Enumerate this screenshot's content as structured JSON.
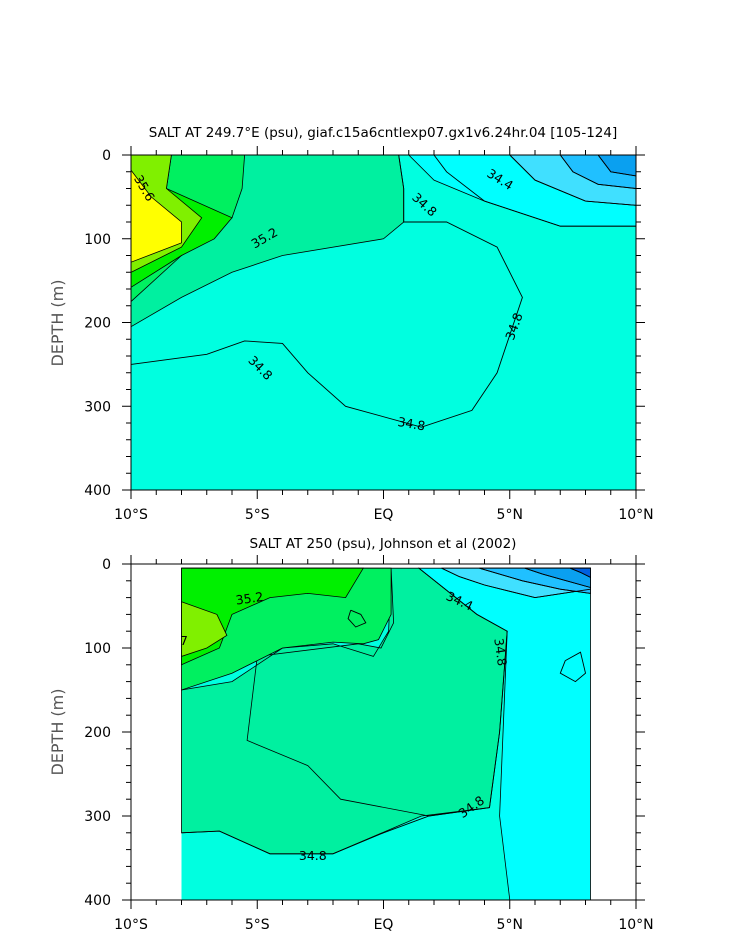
{
  "chart_data": [
    {
      "type": "heatmap",
      "title": "SALT AT 249.7°E (psu), giaf.c15a6cntlexp07.gx1v6.24hr.04 [105-124]",
      "ylabel": "DEPTH (m)",
      "xlabel": "",
      "xlim": [
        -10,
        10
      ],
      "ylim": [
        400,
        0
      ],
      "x_ticks": [
        -10,
        -5,
        0,
        5,
        10
      ],
      "x_tick_labels": [
        "10°S",
        "5°S",
        "EQ",
        "5°N",
        "10°N"
      ],
      "y_ticks": [
        0,
        100,
        200,
        300,
        400
      ],
      "y_tick_labels": [
        "0",
        "100",
        "200",
        "300",
        "400"
      ],
      "contour_interval": 0.2,
      "background_level": "34.6-34.8",
      "contour_labels": [
        {
          "text": "35.6",
          "lat": -9.5,
          "depth": 40,
          "rot": 60
        },
        {
          "text": "35.2",
          "lat": -4.7,
          "depth": 100,
          "rot": -30
        },
        {
          "text": "34.8",
          "lat": 1.6,
          "depth": 60,
          "rot": 42
        },
        {
          "text": "34.4",
          "lat": 4.6,
          "depth": 30,
          "rot": 32
        },
        {
          "text": "34.8",
          "lat": 5.2,
          "depth": 205,
          "rot": -70
        },
        {
          "text": "34.8",
          "lat": -4.9,
          "depth": 255,
          "rot": 45
        },
        {
          "text": "34.8",
          "lat": 1.1,
          "depth": 322,
          "rot": 10
        }
      ],
      "regions": [
        {
          "level": "34.8-35.0",
          "color": "#00f0a0",
          "points": [
            [
              -10,
              0
            ],
            [
              0.6,
              0
            ],
            [
              0.8,
              40
            ],
            [
              0.8,
              80
            ],
            [
              0,
              100
            ],
            [
              -4,
              120
            ],
            [
              -6,
              140
            ],
            [
              -8,
              170
            ],
            [
              -10,
              205
            ]
          ]
        },
        {
          "level": "35.0-35.2",
          "color": "#00f060",
          "points": [
            [
              -10,
              0
            ],
            [
              -5.5,
              0
            ],
            [
              -5.6,
              40
            ],
            [
              -6,
              75
            ],
            [
              -8,
              120
            ],
            [
              -10,
              175
            ]
          ]
        },
        {
          "level": "35.2-35.4",
          "color": "#00f000",
          "points": [
            [
              -10,
              0
            ],
            [
              -8.4,
              0
            ],
            [
              -8.6,
              40
            ],
            [
              -6,
              75
            ],
            [
              -6.7,
              100
            ],
            [
              -8,
              120
            ],
            [
              -10,
              158
            ]
          ]
        },
        {
          "level": "35.4-35.6",
          "color": "#80f000",
          "points": [
            [
              -10,
              0
            ],
            [
              -8.4,
              0
            ],
            [
              -8.6,
              40
            ],
            [
              -7.2,
              75
            ],
            [
              -8,
              110
            ],
            [
              -10,
              140
            ]
          ]
        },
        {
          "level": "35.6-35.8",
          "color": "#ffff00",
          "points": [
            [
              -10,
              18
            ],
            [
              -9.2,
              50
            ],
            [
              -8,
              80
            ],
            [
              -8,
              105
            ],
            [
              -10,
              128
            ]
          ]
        },
        {
          "level": "34.4-34.6",
          "color": "#00ffff",
          "points": [
            [
              1,
              0
            ],
            [
              10,
              0
            ],
            [
              10,
              85
            ],
            [
              7,
              85
            ],
            [
              4,
              55
            ],
            [
              2,
              30
            ]
          ]
        },
        {
          "level": "34.2-34.4",
          "color": "#40e0ff",
          "points": [
            [
              5,
              0
            ],
            [
              10,
              0
            ],
            [
              10,
              60
            ],
            [
              8,
              55
            ],
            [
              6,
              30
            ]
          ]
        },
        {
          "level": "34.0-34.2",
          "color": "#20c0ff",
          "points": [
            [
              7,
              0
            ],
            [
              10,
              0
            ],
            [
              10,
              40
            ],
            [
              8.5,
              35
            ],
            [
              7.5,
              20
            ]
          ]
        },
        {
          "level": "33.8-34.0",
          "color": "#0aa0f0",
          "points": [
            [
              8.5,
              0
            ],
            [
              10,
              0
            ],
            [
              10,
              25
            ],
            [
              9,
              20
            ]
          ]
        }
      ],
      "contour_lines": [
        [
          [
            -10,
            250
          ],
          [
            -7,
            238
          ],
          [
            -5.5,
            222
          ],
          [
            -4,
            225
          ],
          [
            -3,
            260
          ],
          [
            -1.5,
            300
          ],
          [
            1.5,
            325
          ],
          [
            3.5,
            305
          ],
          [
            4.5,
            260
          ],
          [
            5.5,
            170
          ],
          [
            4.5,
            110
          ],
          [
            2.5,
            80
          ],
          [
            0.8,
            80
          ],
          [
            0.8,
            40
          ],
          [
            0.6,
            0
          ]
        ],
        [
          [
            2,
            0
          ],
          [
            2.5,
            20
          ],
          [
            4,
            55
          ],
          [
            7,
            85
          ],
          [
            10,
            85
          ]
        ],
        [
          [
            5,
            0
          ],
          [
            6,
            30
          ],
          [
            8,
            55
          ],
          [
            10,
            60
          ]
        ],
        [
          [
            7,
            0
          ],
          [
            7.5,
            20
          ],
          [
            8.5,
            35
          ],
          [
            10,
            40
          ]
        ],
        [
          [
            8.5,
            0
          ],
          [
            9,
            20
          ],
          [
            10,
            25
          ]
        ]
      ]
    },
    {
      "type": "heatmap",
      "title": "SALT AT 250 (psu), Johnson et al (2002)",
      "ylabel": "DEPTH (m)",
      "xlabel": "",
      "xlim": [
        -10,
        10
      ],
      "ylim": [
        400,
        0
      ],
      "data_lat_range": [
        -8,
        8.2
      ],
      "x_ticks": [
        -10,
        -5,
        0,
        5,
        10
      ],
      "x_tick_labels": [
        "10°S",
        "5°S",
        "EQ",
        "5°N",
        "10°N"
      ],
      "y_ticks": [
        0,
        100,
        200,
        300,
        400
      ],
      "y_tick_labels": [
        "0",
        "100",
        "200",
        "300",
        "400"
      ],
      "contour_interval": 0.2,
      "background_level": "34.6-34.8",
      "contour_labels": [
        {
          "text": "35.2",
          "lat": -5.3,
          "depth": 42,
          "rot": -8
        },
        {
          "text": "34.4",
          "lat": 3,
          "depth": 45,
          "rot": 25
        },
        {
          "text": "34.8",
          "lat": 4.6,
          "depth": 105,
          "rot": 82
        },
        {
          "text": "34.8",
          "lat": 3.5,
          "depth": 290,
          "rot": -35
        },
        {
          "text": "34.8",
          "lat": -2.8,
          "depth": 348,
          "rot": 0
        },
        {
          "text": "7",
          "lat": -7.9,
          "depth": 92,
          "rot": 0
        }
      ],
      "regions": [
        {
          "level": "34.8-35.0",
          "color": "#00f0a0",
          "points": [
            [
              -8,
              5
            ],
            [
              0.3,
              5
            ],
            [
              0.4,
              70
            ],
            [
              -0.1,
              100
            ],
            [
              -1,
              95
            ],
            [
              -5,
              110
            ],
            [
              -5.4,
              210
            ],
            [
              -3,
              240
            ],
            [
              -1.7,
              280
            ],
            [
              1.8,
              300
            ],
            [
              4.2,
              290
            ],
            [
              4.6,
              200
            ],
            [
              4.9,
              80
            ],
            [
              3.7,
              60
            ],
            [
              1.4,
              5
            ],
            [
              0.3,
              5
            ],
            [
              0.2,
              80
            ],
            [
              0,
              90
            ],
            [
              -0.4,
              110
            ],
            [
              -2,
              95
            ],
            [
              -4,
              100
            ],
            [
              -5,
              120
            ],
            [
              -6,
              140
            ],
            [
              -8,
              150
            ],
            [
              -8,
              320
            ],
            [
              -6.5,
              318
            ],
            [
              -4.5,
              345
            ],
            [
              -2,
              345
            ],
            [
              1.5,
              300
            ],
            [
              4.2,
              290
            ],
            [
              4.6,
              200
            ],
            [
              4.9,
              80
            ],
            [
              3.7,
              60
            ],
            [
              1.4,
              5
            ]
          ]
        },
        {
          "level": "35.0-35.2",
          "color": "#00f060",
          "points": [
            [
              -8,
              5
            ],
            [
              0.3,
              5
            ],
            [
              0.3,
              60
            ],
            [
              -0.2,
              90
            ],
            [
              -0.8,
              95
            ],
            [
              -2,
              93
            ],
            [
              -4,
              100
            ],
            [
              -5,
              115
            ],
            [
              -6,
              130
            ],
            [
              -8,
              150
            ]
          ]
        },
        {
          "level": "35.2-35.4",
          "color": "#00f000",
          "points": [
            [
              -8,
              5
            ],
            [
              -0.8,
              5
            ],
            [
              -1.5,
              40
            ],
            [
              -3,
              35
            ],
            [
              -4.5,
              40
            ],
            [
              -6,
              60
            ],
            [
              -6.5,
              100
            ],
            [
              -8,
              120
            ]
          ]
        },
        {
          "level": "35.4-35.6",
          "color": "#80f000",
          "points": [
            [
              -8,
              45
            ],
            [
              -6.6,
              60
            ],
            [
              -6.2,
              85
            ],
            [
              -7,
              100
            ],
            [
              -8,
              110
            ]
          ]
        },
        {
          "level": "34.4-34.6",
          "color": "#00ffff",
          "points": [
            [
              1.4,
              5
            ],
            [
              8.2,
              5
            ],
            [
              8.2,
              400
            ],
            [
              5,
              400
            ],
            [
              4.6,
              300
            ],
            [
              4.9,
              80
            ],
            [
              3.7,
              60
            ]
          ]
        },
        {
          "level": "34.2-34.4",
          "color": "#40e0ff",
          "points": [
            [
              2.3,
              5
            ],
            [
              8.2,
              5
            ],
            [
              8.2,
              30
            ],
            [
              6,
              40
            ],
            [
              4,
              25
            ],
            [
              3,
              15
            ]
          ]
        },
        {
          "level": "34.0-34.2",
          "color": "#20c0ff",
          "points": [
            [
              3.8,
              5
            ],
            [
              8.2,
              5
            ],
            [
              8.2,
              35
            ],
            [
              7,
              30
            ],
            [
              5.5,
              20
            ]
          ]
        },
        {
          "level": "33.8-34.0",
          "color": "#0aa0f0",
          "points": [
            [
              5.6,
              5
            ],
            [
              8.2,
              5
            ],
            [
              8.2,
              28
            ],
            [
              7,
              18
            ],
            [
              6.3,
              12
            ]
          ]
        },
        {
          "level": "33.6-33.8",
          "color": "#0060e0",
          "points": [
            [
              7.4,
              5
            ],
            [
              8.2,
              5
            ],
            [
              8.2,
              16
            ],
            [
              7.8,
              10
            ]
          ]
        }
      ],
      "contour_lines": [
        [
          [
            1.4,
            5
          ],
          [
            3.7,
            60
          ],
          [
            4.9,
            80
          ],
          [
            4.6,
            200
          ],
          [
            4.2,
            290
          ],
          [
            1.8,
            300
          ],
          [
            0,
            320
          ],
          [
            -2,
            345
          ],
          [
            -4.5,
            345
          ],
          [
            -6.5,
            318
          ],
          [
            -8,
            320
          ]
        ],
        [
          [
            2.3,
            5
          ],
          [
            3,
            15
          ],
          [
            4,
            25
          ],
          [
            6,
            40
          ],
          [
            8.2,
            30
          ]
        ],
        [
          [
            3.8,
            5
          ],
          [
            5.5,
            20
          ],
          [
            7,
            30
          ],
          [
            8.2,
            35
          ]
        ],
        [
          [
            5.6,
            5
          ],
          [
            6.3,
            12
          ],
          [
            7,
            18
          ],
          [
            8.2,
            28
          ]
        ],
        [
          [
            7.4,
            5
          ],
          [
            7.8,
            10
          ],
          [
            8.2,
            16
          ]
        ],
        [
          [
            7.2,
            115
          ],
          [
            7.8,
            105
          ],
          [
            8,
            130
          ],
          [
            7.6,
            140
          ],
          [
            7,
            130
          ],
          [
            7.2,
            115
          ]
        ],
        [
          [
            -1.3,
            55
          ],
          [
            -0.9,
            60
          ],
          [
            -0.7,
            70
          ],
          [
            -1.1,
            75
          ],
          [
            -1.4,
            65
          ],
          [
            -1.3,
            55
          ]
        ]
      ]
    }
  ]
}
